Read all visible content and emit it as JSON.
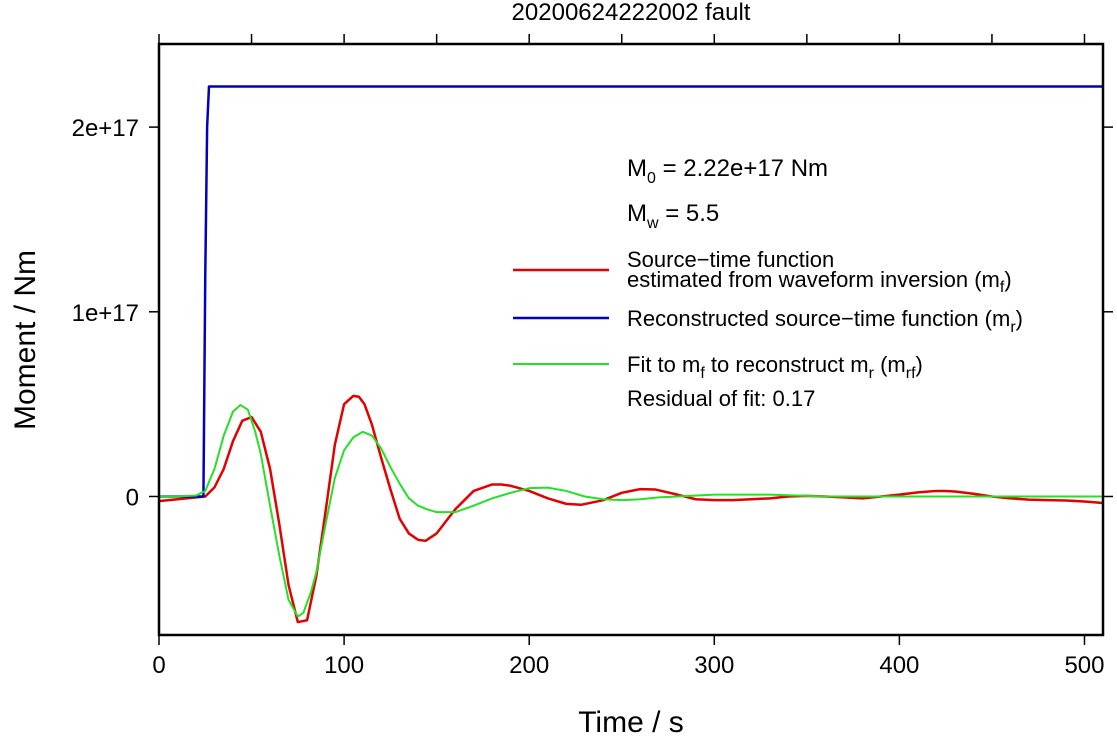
{
  "chart_data": {
    "type": "line",
    "title": "20200624222002 fault",
    "xlabel": "Time / s",
    "ylabel": "Moment / Nm",
    "xlim": [
      0,
      510
    ],
    "ylim": [
      -7.5e+16,
      2.45e+17
    ],
    "x_ticks": [
      0,
      100,
      200,
      300,
      400,
      500
    ],
    "x_tick_labels": [
      "0",
      "100",
      "200",
      "300",
      "400",
      "500"
    ],
    "y_ticks": [
      0,
      1e+17,
      2e+17
    ],
    "y_tick_labels": [
      "0",
      "1e+17",
      "2e+17"
    ],
    "grid": false,
    "legend_position": "right",
    "annotations": {
      "m0_prefix": "M",
      "m0_sub": "0",
      "m0_rest": " = 2.22e+17 Nm",
      "mw_prefix": "M",
      "mw_sub": "w",
      "mw_rest": " = 5.5",
      "residual": "Residual of fit: 0.17"
    },
    "legend": {
      "red_line1": "Source−time function",
      "red_line2_main": "estimated from waveform inversion (m",
      "red_line2_sub": "f",
      "red_line2_end": ")",
      "blue_main": "Reconstructed source−time function (m",
      "blue_sub": "r",
      "blue_end": ")",
      "green_a": "Fit to m",
      "green_sub1": "f",
      "green_b": " to reconstruct m",
      "green_sub2": "r",
      "green_c": " (m",
      "green_sub3": "rf",
      "green_d": ")"
    },
    "series": [
      {
        "color": "#e30000",
        "x": [
          0,
          10,
          20,
          25,
          30,
          35,
          40,
          45,
          50,
          55,
          60,
          65,
          70,
          75,
          80,
          85,
          90,
          95,
          100,
          105,
          108,
          111,
          115,
          120,
          125,
          130,
          135,
          140,
          144,
          150,
          160,
          170,
          180,
          185,
          190,
          200,
          210,
          220,
          228,
          240,
          250,
          260,
          268,
          280,
          290,
          300,
          310,
          320,
          330,
          340,
          350,
          360,
          370,
          380,
          390,
          400,
          410,
          420,
          425,
          430,
          440,
          450,
          460,
          470,
          480,
          490,
          500,
          510
        ],
        "y": [
          -2500000000000000.0,
          -1500000000000000.0,
          -500000000000000.0,
          0,
          5000000000000000.0,
          1.5e+16,
          3e+16,
          4.1e+16,
          4.3e+16,
          3.5e+16,
          1.5e+16,
          -1.5e+16,
          -4.8e+16,
          -6.8e+16,
          -6.7e+16,
          -4.3e+16,
          -8000000000000000.0,
          2.8e+16,
          5e+16,
          5.45e+16,
          5.4e+16,
          5e+16,
          3.9e+16,
          2.1e+16,
          4000000000000000.0,
          -1.2e+16,
          -2e+16,
          -2.35e+16,
          -2.4e+16,
          -2e+16,
          -7000000000000000.0,
          3000000000000000.0,
          6500000000000000.0,
          6500000000000000.0,
          5800000000000000.0,
          3000000000000000.0,
          -1000000000000000.0,
          -4000000000000000.0,
          -4500000000000000.0,
          -2000000000000000.0,
          2000000000000000.0,
          4000000000000000.0,
          3800000000000000.0,
          1000000000000000.0,
          -1500000000000000.0,
          -2000000000000000.0,
          -2000000000000000.0,
          -1500000000000000.0,
          -1000000000000000.0,
          0,
          300000000000000.0,
          0,
          -500000000000000.0,
          -1000000000000000.0,
          0,
          1000000000000000.0,
          2200000000000000.0,
          3000000000000000.0,
          3000000000000000.0,
          2700000000000000.0,
          1500000000000000.0,
          0,
          -1000000000000000.0,
          -1700000000000000.0,
          -2000000000000000.0,
          -2200000000000000.0,
          -2700000000000000.0,
          -3500000000000000.0
        ]
      },
      {
        "color": "#0000c0",
        "x": [
          0,
          24,
          25,
          26,
          27,
          510
        ],
        "y": [
          0,
          0,
          1.2e+17,
          2e+17,
          2.22e+17,
          2.22e+17
        ]
      },
      {
        "color": "#26e026",
        "x": [
          0,
          10,
          20,
          25,
          30,
          35,
          40,
          44,
          48,
          52,
          55,
          60,
          65,
          70,
          75,
          78,
          82,
          85,
          90,
          95,
          100,
          105,
          110,
          115,
          120,
          125,
          130,
          135,
          140,
          145,
          150,
          160,
          170,
          180,
          190,
          200,
          210,
          220,
          230,
          240,
          250,
          260,
          270,
          280,
          300,
          330,
          360,
          400,
          450,
          510
        ],
        "y": [
          0,
          0,
          500000000000000.0,
          3000000000000000.0,
          1.5e+16,
          3.3e+16,
          4.6e+16,
          4.95e+16,
          4.7e+16,
          3.5e+16,
          2.3e+16,
          -5000000000000000.0,
          -3.2e+16,
          -5.6e+16,
          -6.5e+16,
          -6.3e+16,
          -5.2e+16,
          -4.1e+16,
          -1.5e+16,
          1e+16,
          2.5e+16,
          3.2e+16,
          3.5e+16,
          3.3e+16,
          2.6e+16,
          1.6e+16,
          7000000000000000.0,
          -1000000000000000.0,
          -5000000000000000.0,
          -7000000000000000.0,
          -8500000000000000.0,
          -8500000000000000.0,
          -5000000000000000.0,
          -1000000000000000.0,
          2000000000000000.0,
          4500000000000000.0,
          4800000000000000.0,
          3000000000000000.0,
          0,
          -1500000000000000.0,
          -2000000000000000.0,
          -1500000000000000.0,
          -500000000000000.0,
          0,
          1000000000000000.0,
          1000000000000000.0,
          0,
          0,
          0,
          0
        ]
      }
    ]
  }
}
